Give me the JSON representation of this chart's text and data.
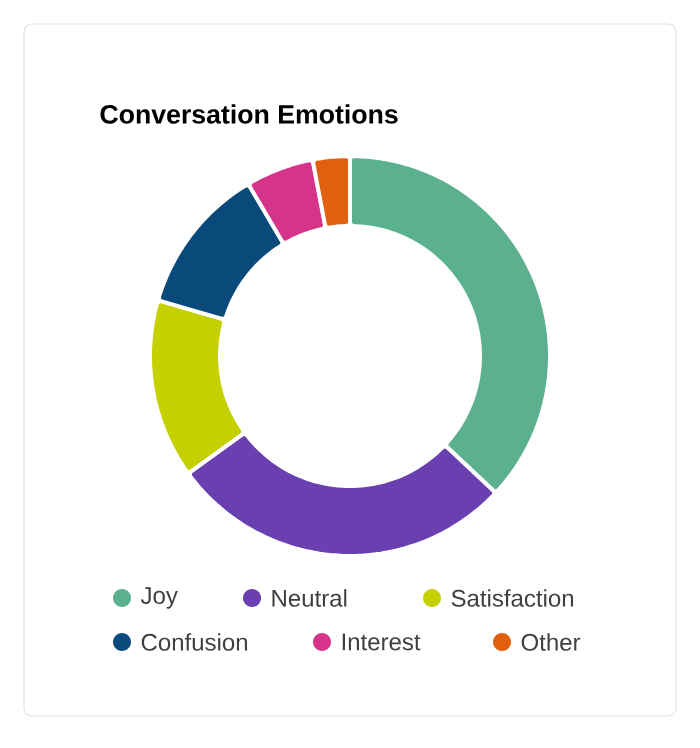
{
  "chart_data": {
    "type": "donut",
    "title": "Conversation Emotions",
    "categories": [
      "Joy",
      "Neutral",
      "Satisfaction",
      "Confusion",
      "Interest",
      "Other"
    ],
    "values": [
      37,
      28,
      14.5,
      12,
      5.5,
      3
    ],
    "colors": [
      "#5bb08f",
      "#6a3fb0",
      "#c5d000",
      "#0a4a7a",
      "#d6338a",
      "#e06010"
    ],
    "legend": "bottom"
  }
}
